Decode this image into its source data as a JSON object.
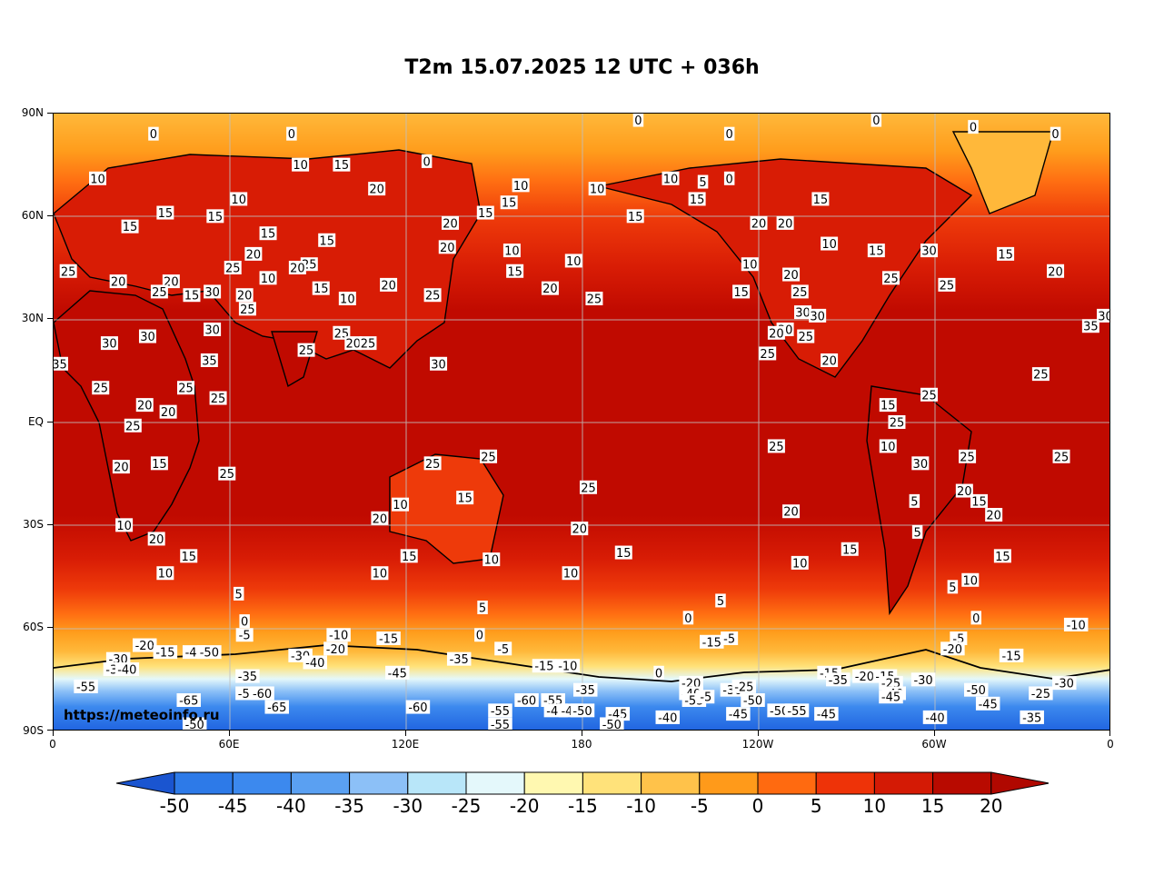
{
  "title": "T2m 15.07.2025 12 UTC + 036h",
  "source": "https://meteoinfo.ru",
  "lat_ticks": [
    "90N",
    "60N",
    "30N",
    "EQ",
    "30S",
    "60S",
    "90S"
  ],
  "lon_ticks": [
    "0",
    "60E",
    "120E",
    "180",
    "120W",
    "60W",
    "0"
  ],
  "colorbar": {
    "levels": [
      "-50",
      "-45",
      "-40",
      "-35",
      "-30",
      "-25",
      "-20",
      "-15",
      "-10",
      "-5",
      "0",
      "5",
      "10",
      "15",
      "20"
    ],
    "colors": [
      "#1f63e0",
      "#2d7ae8",
      "#3c89ee",
      "#5aa0f2",
      "#8cc0f7",
      "#b8e6f9",
      "#e4f8fb",
      "#fff8b0",
      "#ffe27a",
      "#ffc24a",
      "#ff9a1a",
      "#ff6a10",
      "#ee3308",
      "#d41a05",
      "#b80a00"
    ],
    "low_color": "#1a55d0",
    "high_color": "#b00800"
  },
  "map_colors": {
    "tropical": "#c00a00",
    "warm": "#d81c05",
    "mild": "#ee3a0a",
    "cool": "#ff6e12",
    "cold": "#ff9d1c",
    "arctic": "#ffb83a",
    "icy": "#ffe27a",
    "polar": "#e4f8fb",
    "antarctic": "#3c89ee",
    "deep_antarctic": "#1f63e0"
  },
  "contour_labels": [
    {
      "t": "0",
      "lon": 34,
      "lat": 84
    },
    {
      "t": "0",
      "lon": 81,
      "lat": 84
    },
    {
      "t": "0",
      "lon": 199,
      "lat": 88
    },
    {
      "t": "0",
      "lon": 280,
      "lat": 88
    },
    {
      "t": "0",
      "lon": 313,
      "lat": 86
    },
    {
      "t": "0",
      "lon": 341,
      "lat": 84
    },
    {
      "t": "0",
      "lon": 230,
      "lat": 84
    },
    {
      "t": "10",
      "lon": 15,
      "lat": 71
    },
    {
      "t": "10",
      "lon": 84,
      "lat": 75
    },
    {
      "t": "15",
      "lon": 98,
      "lat": 75
    },
    {
      "t": "0",
      "lon": 127,
      "lat": 76
    },
    {
      "t": "20",
      "lon": 110,
      "lat": 68
    },
    {
      "t": "10",
      "lon": 63,
      "lat": 65
    },
    {
      "t": "15",
      "lon": 38,
      "lat": 61
    },
    {
      "t": "15",
      "lon": 55,
      "lat": 60
    },
    {
      "t": "15",
      "lon": 26,
      "lat": 57
    },
    {
      "t": "15",
      "lon": 73,
      "lat": 55
    },
    {
      "t": "20",
      "lon": 68,
      "lat": 49
    },
    {
      "t": "25",
      "lon": 61,
      "lat": 45
    },
    {
      "t": "15",
      "lon": 93,
      "lat": 53
    },
    {
      "t": "25",
      "lon": 87,
      "lat": 46
    },
    {
      "t": "20",
      "lon": 83,
      "lat": 45
    },
    {
      "t": "10",
      "lon": 73,
      "lat": 42
    },
    {
      "t": "25",
      "lon": 5,
      "lat": 44
    },
    {
      "t": "20",
      "lon": 22,
      "lat": 41
    },
    {
      "t": "20",
      "lon": 40,
      "lat": 41
    },
    {
      "t": "25",
      "lon": 36,
      "lat": 38
    },
    {
      "t": "15",
      "lon": 47,
      "lat": 37
    },
    {
      "t": "30",
      "lon": 54,
      "lat": 38
    },
    {
      "t": "20",
      "lon": 65,
      "lat": 37
    },
    {
      "t": "25",
      "lon": 66,
      "lat": 33
    },
    {
      "t": "30",
      "lon": 54,
      "lat": 27
    },
    {
      "t": "15",
      "lon": 91,
      "lat": 39
    },
    {
      "t": "10",
      "lon": 100,
      "lat": 36
    },
    {
      "t": "20",
      "lon": 114,
      "lat": 40
    },
    {
      "t": "25",
      "lon": 129,
      "lat": 37
    },
    {
      "t": "25",
      "lon": 98,
      "lat": 26
    },
    {
      "t": "20",
      "lon": 102,
      "lat": 23
    },
    {
      "t": "25",
      "lon": 107,
      "lat": 23
    },
    {
      "t": "25",
      "lon": 86,
      "lat": 21
    },
    {
      "t": "30",
      "lon": 131,
      "lat": 17
    },
    {
      "t": "30",
      "lon": 19,
      "lat": 23
    },
    {
      "t": "30",
      "lon": 32,
      "lat": 25
    },
    {
      "t": "35",
      "lon": 2,
      "lat": 17
    },
    {
      "t": "35",
      "lon": 53,
      "lat": 18
    },
    {
      "t": "25",
      "lon": 16,
      "lat": 10
    },
    {
      "t": "25",
      "lon": 45,
      "lat": 10
    },
    {
      "t": "25",
      "lon": 56,
      "lat": 7
    },
    {
      "t": "20",
      "lon": 31,
      "lat": 5
    },
    {
      "t": "20",
      "lon": 39,
      "lat": 3
    },
    {
      "t": "25",
      "lon": 27,
      "lat": -1
    },
    {
      "t": "15",
      "lon": 36,
      "lat": -12
    },
    {
      "t": "20",
      "lon": 23,
      "lat": -13
    },
    {
      "t": "25",
      "lon": 59,
      "lat": -15
    },
    {
      "t": "10",
      "lon": 24,
      "lat": -30
    },
    {
      "t": "20",
      "lon": 35,
      "lat": -34
    },
    {
      "t": "15",
      "lon": 46,
      "lat": -39
    },
    {
      "t": "10",
      "lon": 38,
      "lat": -44
    },
    {
      "t": "5",
      "lon": 63,
      "lat": -50
    },
    {
      "t": "25",
      "lon": 129,
      "lat": -12
    },
    {
      "t": "25",
      "lon": 148,
      "lat": -10
    },
    {
      "t": "15",
      "lon": 140,
      "lat": -22
    },
    {
      "t": "10",
      "lon": 118,
      "lat": -24
    },
    {
      "t": "20",
      "lon": 111,
      "lat": -28
    },
    {
      "t": "15",
      "lon": 121,
      "lat": -39
    },
    {
      "t": "10",
      "lon": 111,
      "lat": -44
    },
    {
      "t": "10",
      "lon": 149,
      "lat": -40
    },
    {
      "t": "25",
      "lon": 182,
      "lat": -19
    },
    {
      "t": "20",
      "lon": 179,
      "lat": -31
    },
    {
      "t": "10",
      "lon": 176,
      "lat": -44
    },
    {
      "t": "15",
      "lon": 194,
      "lat": -38
    },
    {
      "t": "5",
      "lon": 146,
      "lat": -54
    },
    {
      "t": "0",
      "lon": 145,
      "lat": -62
    },
    {
      "t": "25",
      "lon": 184,
      "lat": 36
    },
    {
      "t": "20",
      "lon": 169,
      "lat": 39
    },
    {
      "t": "10",
      "lon": 177,
      "lat": 47
    },
    {
      "t": "15",
      "lon": 157,
      "lat": 44
    },
    {
      "t": "10",
      "lon": 156,
      "lat": 50
    },
    {
      "t": "20",
      "lon": 134,
      "lat": 51
    },
    {
      "t": "20",
      "lon": 135,
      "lat": 58
    },
    {
      "t": "15",
      "lon": 147,
      "lat": 61
    },
    {
      "t": "15",
      "lon": 155,
      "lat": 64
    },
    {
      "t": "10",
      "lon": 159,
      "lat": 69
    },
    {
      "t": "10",
      "lon": 185,
      "lat": 68
    },
    {
      "t": "10",
      "lon": 210,
      "lat": 71
    },
    {
      "t": "5",
      "lon": 221,
      "lat": 70
    },
    {
      "t": "0",
      "lon": 230,
      "lat": 71
    },
    {
      "t": "15",
      "lon": 219,
      "lat": 65
    },
    {
      "t": "15",
      "lon": 198,
      "lat": 60
    },
    {
      "t": "20",
      "lon": 240,
      "lat": 58
    },
    {
      "t": "20",
      "lon": 249,
      "lat": 58
    },
    {
      "t": "10",
      "lon": 237,
      "lat": 46
    },
    {
      "t": "15",
      "lon": 234,
      "lat": 38
    },
    {
      "t": "20",
      "lon": 251,
      "lat": 43
    },
    {
      "t": "25",
      "lon": 254,
      "lat": 38
    },
    {
      "t": "30",
      "lon": 255,
      "lat": 32
    },
    {
      "t": "30",
      "lon": 260,
      "lat": 31
    },
    {
      "t": "30",
      "lon": 249,
      "lat": 27
    },
    {
      "t": "20",
      "lon": 246,
      "lat": 26
    },
    {
      "t": "25",
      "lon": 256,
      "lat": 25
    },
    {
      "t": "25",
      "lon": 243,
      "lat": 20
    },
    {
      "t": "20",
      "lon": 264,
      "lat": 18
    },
    {
      "t": "15",
      "lon": 261,
      "lat": 65
    },
    {
      "t": "10",
      "lon": 264,
      "lat": 52
    },
    {
      "t": "15",
      "lon": 280,
      "lat": 50
    },
    {
      "t": "25",
      "lon": 285,
      "lat": 42
    },
    {
      "t": "30",
      "lon": 298,
      "lat": 50
    },
    {
      "t": "25",
      "lon": 304,
      "lat": 40
    },
    {
      "t": "15",
      "lon": 324,
      "lat": 49
    },
    {
      "t": "20",
      "lon": 341,
      "lat": 44
    },
    {
      "t": "35",
      "lon": 353,
      "lat": 28
    },
    {
      "t": "30",
      "lon": 358,
      "lat": 31
    },
    {
      "t": "25",
      "lon": 336,
      "lat": 14
    },
    {
      "t": "25",
      "lon": 298,
      "lat": 8
    },
    {
      "t": "15",
      "lon": 284,
      "lat": 5
    },
    {
      "t": "25",
      "lon": 287,
      "lat": 0
    },
    {
      "t": "10",
      "lon": 284,
      "lat": -7
    },
    {
      "t": "25",
      "lon": 246,
      "lat": -7
    },
    {
      "t": "30",
      "lon": 295,
      "lat": -12
    },
    {
      "t": "25",
      "lon": 311,
      "lat": -10
    },
    {
      "t": "25",
      "lon": 343,
      "lat": -10
    },
    {
      "t": "20",
      "lon": 310,
      "lat": -20
    },
    {
      "t": "15",
      "lon": 315,
      "lat": -23
    },
    {
      "t": "20",
      "lon": 320,
      "lat": -27
    },
    {
      "t": "5",
      "lon": 293,
      "lat": -23
    },
    {
      "t": "5",
      "lon": 294,
      "lat": -32
    },
    {
      "t": "15",
      "lon": 323,
      "lat": -39
    },
    {
      "t": "10",
      "lon": 312,
      "lat": -46
    },
    {
      "t": "5",
      "lon": 306,
      "lat": -48
    },
    {
      "t": "20",
      "lon": 251,
      "lat": -26
    },
    {
      "t": "15",
      "lon": 271,
      "lat": -37
    },
    {
      "t": "10",
      "lon": 254,
      "lat": -41
    },
    {
      "t": "5",
      "lon": 227,
      "lat": -52
    },
    {
      "t": "0",
      "lon": 216,
      "lat": -57
    },
    {
      "t": "0",
      "lon": 314,
      "lat": -57
    },
    {
      "t": "0",
      "lon": 65,
      "lat": -58
    },
    {
      "t": "-5",
      "lon": 65,
      "lat": -62
    },
    {
      "t": "-10",
      "lon": 97,
      "lat": -62
    },
    {
      "t": "-15",
      "lon": 114,
      "lat": -63
    },
    {
      "t": "-20",
      "lon": 31,
      "lat": -65
    },
    {
      "t": "-15",
      "lon": 38,
      "lat": -67
    },
    {
      "t": "-45",
      "lon": 48,
      "lat": -67
    },
    {
      "t": "-50",
      "lon": 53,
      "lat": -67
    },
    {
      "t": "-20",
      "lon": 96,
      "lat": -66
    },
    {
      "t": "-30",
      "lon": 22,
      "lat": -69
    },
    {
      "t": "-30",
      "lon": 84,
      "lat": -68
    },
    {
      "t": "-40",
      "lon": 89,
      "lat": -70
    },
    {
      "t": "-35",
      "lon": 138,
      "lat": -69
    },
    {
      "t": "-35",
      "lon": 21,
      "lat": -72
    },
    {
      "t": "-40",
      "lon": 25,
      "lat": -72
    },
    {
      "t": "-45",
      "lon": 117,
      "lat": -73
    },
    {
      "t": "-35",
      "lon": 66,
      "lat": -74
    },
    {
      "t": "-55",
      "lon": 11,
      "lat": -77
    },
    {
      "t": "-55",
      "lon": 66,
      "lat": -79
    },
    {
      "t": "-60",
      "lon": 71,
      "lat": -79
    },
    {
      "t": "-65",
      "lon": 46,
      "lat": -81
    },
    {
      "t": "-65",
      "lon": 76,
      "lat": -83
    },
    {
      "t": "-60",
      "lon": 124,
      "lat": -83
    },
    {
      "t": "-50",
      "lon": 48,
      "lat": -88
    },
    {
      "t": "-55",
      "lon": 152,
      "lat": -84
    },
    {
      "t": "-60",
      "lon": 161,
      "lat": -81
    },
    {
      "t": "-55",
      "lon": 170,
      "lat": -81
    },
    {
      "t": "-40",
      "lon": 171,
      "lat": -84
    },
    {
      "t": "-45",
      "lon": 176,
      "lat": -84
    },
    {
      "t": "-50",
      "lon": 180,
      "lat": -84
    },
    {
      "t": "-35",
      "lon": 181,
      "lat": -78
    },
    {
      "t": "-45",
      "lon": 192,
      "lat": -85
    },
    {
      "t": "-55",
      "lon": 152,
      "lat": -88
    },
    {
      "t": "-50",
      "lon": 190,
      "lat": -88
    },
    {
      "t": "-40",
      "lon": 209,
      "lat": -86
    },
    {
      "t": "-5",
      "lon": 153,
      "lat": -66
    },
    {
      "t": "-15",
      "lon": 167,
      "lat": -71
    },
    {
      "t": "-10",
      "lon": 175,
      "lat": -71
    },
    {
      "t": "0",
      "lon": 206,
      "lat": -73
    },
    {
      "t": "-20",
      "lon": 217,
      "lat": -76
    },
    {
      "t": "-40",
      "lon": 217,
      "lat": -79
    },
    {
      "t": "-55",
      "lon": 218,
      "lat": -81
    },
    {
      "t": "-5",
      "lon": 222,
      "lat": -80
    },
    {
      "t": "-30",
      "lon": 231,
      "lat": -78
    },
    {
      "t": "-25",
      "lon": 235,
      "lat": -77
    },
    {
      "t": "-50",
      "lon": 238,
      "lat": -81
    },
    {
      "t": "-45",
      "lon": 233,
      "lat": -85
    },
    {
      "t": "-50",
      "lon": 247,
      "lat": -84
    },
    {
      "t": "-55",
      "lon": 253,
      "lat": -84
    },
    {
      "t": "-45",
      "lon": 263,
      "lat": -85
    },
    {
      "t": "-15",
      "lon": 224,
      "lat": -64
    },
    {
      "t": "-5",
      "lon": 230,
      "lat": -63
    },
    {
      "t": "-15",
      "lon": 264,
      "lat": -73
    },
    {
      "t": "-35",
      "lon": 267,
      "lat": -75
    },
    {
      "t": "-20",
      "lon": 276,
      "lat": -74
    },
    {
      "t": "-15",
      "lon": 283,
      "lat": -74
    },
    {
      "t": "-25",
      "lon": 285,
      "lat": -76
    },
    {
      "t": "-40",
      "lon": 286,
      "lat": -79
    },
    {
      "t": "-45",
      "lon": 285,
      "lat": -80
    },
    {
      "t": "-30",
      "lon": 296,
      "lat": -75
    },
    {
      "t": "-50",
      "lon": 314,
      "lat": -78
    },
    {
      "t": "-45",
      "lon": 318,
      "lat": -82
    },
    {
      "t": "-40",
      "lon": 300,
      "lat": -86
    },
    {
      "t": "-5",
      "lon": 308,
      "lat": -63
    },
    {
      "t": "-20",
      "lon": 306,
      "lat": -66
    },
    {
      "t": "-15",
      "lon": 326,
      "lat": -68
    },
    {
      "t": "-10",
      "lon": 348,
      "lat": -59
    },
    {
      "t": "-30",
      "lon": 344,
      "lat": -76
    },
    {
      "t": "-25",
      "lon": 336,
      "lat": -79
    },
    {
      "t": "-35",
      "lon": 333,
      "lat": -86
    }
  ]
}
